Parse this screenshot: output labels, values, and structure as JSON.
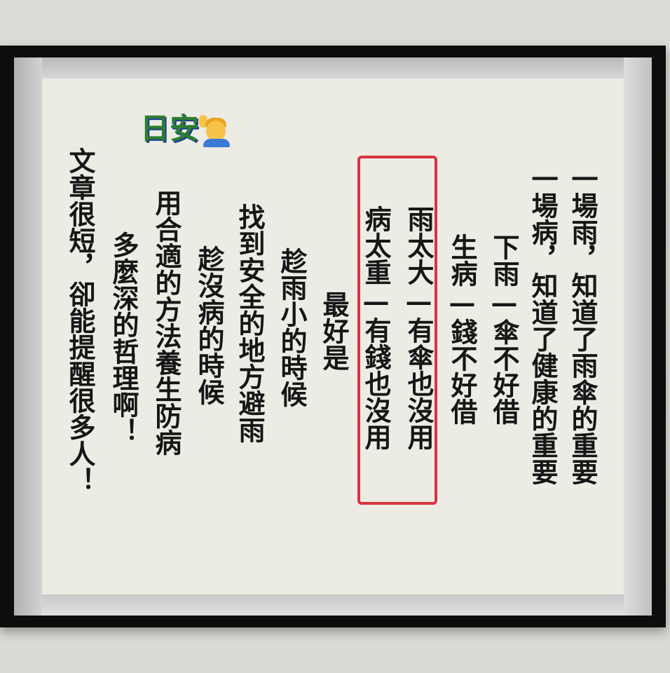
{
  "greeting": {
    "text": "日安",
    "icon": "person-raising-hand-emoji"
  },
  "poem": {
    "col1": "一場雨，知道了雨傘的重要",
    "col2": "一場病，知道了健康的重要",
    "col3": "下雨—傘不好借",
    "col4": "生病—錢不好借",
    "col5": "雨太大—有傘也沒用",
    "col6": "病太重—有錢也沒用",
    "col7": "最好是",
    "col8": "趁雨小的時候",
    "col9": "找到安全的地方避雨",
    "col10": "趁沒病的時候",
    "col11": "用合適的方法養生防病",
    "col12": "多麼深的哲理啊！",
    "col13": "文章很短，卻能提醒很多人！"
  },
  "colors": {
    "highlight": "#d8343f",
    "text": "#161616",
    "greeting": "#2e7d32"
  }
}
